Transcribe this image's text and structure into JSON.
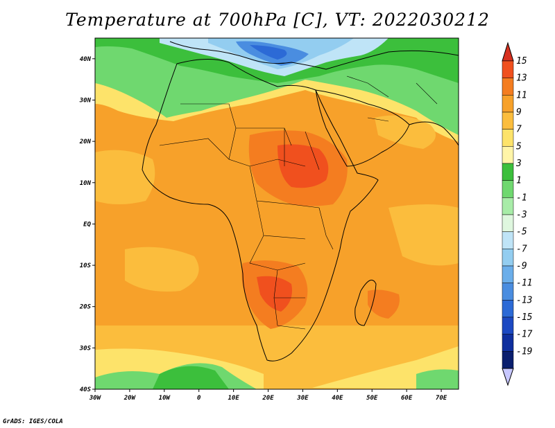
{
  "title": "Temperature at 700hPa [C], VT: 2022030212",
  "credit": "GrADS: IGES/COLA",
  "map": {
    "lon_labels": [
      "30W",
      "20W",
      "10W",
      "0",
      "10E",
      "20E",
      "30E",
      "40E",
      "50E",
      "60E",
      "70E"
    ],
    "lat_labels": [
      "40N",
      "30N",
      "20N",
      "10N",
      "EQ",
      "10S",
      "20S",
      "30S",
      "40S"
    ],
    "lon_range": [
      -30,
      75
    ],
    "lat_range": [
      -40,
      45
    ]
  },
  "colorbar": {
    "labels": [
      "15",
      "13",
      "11",
      "9",
      "7",
      "5",
      "3",
      "1",
      "-1",
      "-3",
      "-5",
      "-7",
      "-9",
      "-11",
      "-13",
      "-15",
      "-17",
      "-19"
    ],
    "colors": [
      "#d7301f",
      "#f0501e",
      "#f47d20",
      "#f7a12a",
      "#fbbd3d",
      "#fde36a",
      "#fff5a8",
      "#3cbf3c",
      "#6fd86f",
      "#a8eca8",
      "#dff7df",
      "#bfe4f7",
      "#93cdf0",
      "#6baeea",
      "#4a8de0",
      "#2c6ad6",
      "#1c49c2",
      "#0f2f9e",
      "#0a1e6e",
      "#c7c7ff"
    ]
  }
}
